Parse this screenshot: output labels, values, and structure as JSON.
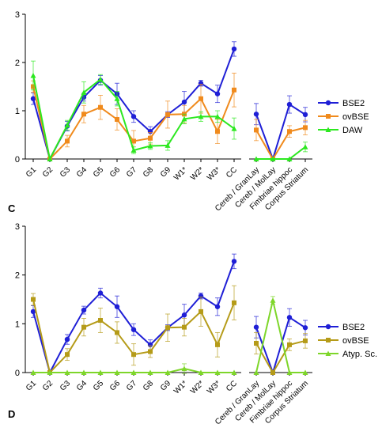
{
  "panels": [
    {
      "label": "C",
      "chart_data": {
        "type": "line",
        "categories": [
          "G1",
          "G2",
          "G3",
          "G4",
          "G5",
          "G6",
          "G7",
          "G8",
          "G9",
          "W1*",
          "W2*",
          "W3*",
          "CC",
          "Cereb / GranLay",
          "Cereb / MolLay",
          "Fimbriae hippoc",
          "Corpus Striatum"
        ],
        "segments": [
          [
            0,
            12
          ],
          [
            13,
            16
          ]
        ],
        "ylim": [
          0,
          3
        ],
        "yticks": [
          0,
          1,
          2,
          3
        ],
        "legend_position": "right",
        "series": [
          {
            "name": "BSE2",
            "color": "#1f1fd6",
            "marker": "circle",
            "values": [
              1.25,
              0.0,
              0.68,
              1.28,
              1.63,
              1.35,
              0.88,
              0.57,
              0.92,
              1.18,
              1.57,
              1.35,
              2.28,
              0.93,
              0.0,
              1.13,
              0.92
            ],
            "errors": [
              0.12,
              0.0,
              0.1,
              0.08,
              0.1,
              0.22,
              0.12,
              0.1,
              0.06,
              0.22,
              0.06,
              0.18,
              0.15,
              0.22,
              0.0,
              0.18,
              0.15
            ]
          },
          {
            "name": "ovBSE",
            "color": "#f08a1c",
            "marker": "square",
            "values": [
              1.5,
              0.0,
              0.37,
              0.93,
              1.07,
              0.82,
              0.37,
              0.43,
              0.92,
              0.93,
              1.25,
              0.57,
              1.43,
              0.6,
              0.0,
              0.57,
              0.65
            ],
            "errors": [
              0.12,
              0.0,
              0.12,
              0.18,
              0.25,
              0.22,
              0.22,
              0.12,
              0.28,
              0.18,
              0.3,
              0.25,
              0.35,
              0.22,
              0.0,
              0.12,
              0.15
            ]
          },
          {
            "name": "DAW",
            "color": "#2ce81f",
            "marker": "triangle",
            "values": [
              1.73,
              0.0,
              0.7,
              1.38,
              1.65,
              1.25,
              0.18,
              0.27,
              0.28,
              0.83,
              0.88,
              0.88,
              0.63,
              0.0,
              0.0,
              0.0,
              0.25
            ],
            "errors": [
              0.3,
              0.0,
              0.1,
              0.22,
              0.1,
              0.15,
              0.07,
              0.07,
              0.1,
              0.1,
              0.1,
              0.12,
              0.22,
              0.0,
              0.0,
              0.0,
              0.1
            ]
          }
        ]
      }
    },
    {
      "label": "D",
      "chart_data": {
        "type": "line",
        "categories": [
          "G1",
          "G2",
          "G3",
          "G4",
          "G5",
          "G6",
          "G7",
          "G8",
          "G9",
          "W1*",
          "W2*",
          "W3*",
          "CC",
          "Cereb / GranLay",
          "Cereb / MolLay",
          "Fimbriae hippoc",
          "Corpus Striatum"
        ],
        "segments": [
          [
            0,
            12
          ],
          [
            13,
            16
          ]
        ],
        "ylim": [
          0,
          3
        ],
        "yticks": [
          0,
          1,
          2,
          3
        ],
        "legend_position": "right",
        "series": [
          {
            "name": "BSE2",
            "color": "#1f1fd6",
            "marker": "circle",
            "values": [
              1.25,
              0.0,
              0.68,
              1.28,
              1.63,
              1.35,
              0.88,
              0.57,
              0.92,
              1.18,
              1.57,
              1.35,
              2.28,
              0.93,
              0.0,
              1.13,
              0.92
            ],
            "errors": [
              0.12,
              0.0,
              0.1,
              0.08,
              0.1,
              0.22,
              0.12,
              0.1,
              0.06,
              0.22,
              0.06,
              0.18,
              0.15,
              0.22,
              0.0,
              0.18,
              0.15
            ]
          },
          {
            "name": "ovBSE",
            "color": "#b59b18",
            "marker": "square",
            "values": [
              1.5,
              0.0,
              0.37,
              0.93,
              1.07,
              0.82,
              0.37,
              0.43,
              0.92,
              0.93,
              1.25,
              0.57,
              1.43,
              0.6,
              0.0,
              0.57,
              0.65
            ],
            "errors": [
              0.12,
              0.0,
              0.12,
              0.18,
              0.25,
              0.22,
              0.22,
              0.12,
              0.28,
              0.18,
              0.3,
              0.25,
              0.35,
              0.22,
              0.0,
              0.12,
              0.15
            ]
          },
          {
            "name": "Atyp. Sc.",
            "color": "#7ed62a",
            "marker": "triangle",
            "values": [
              0.0,
              0.0,
              0.0,
              0.0,
              0.0,
              0.0,
              0.0,
              0.0,
              0.0,
              0.08,
              0.0,
              0.0,
              0.0,
              0.0,
              1.48,
              0.0,
              0.0
            ],
            "errors": [
              0.0,
              0.0,
              0.0,
              0.0,
              0.0,
              0.0,
              0.0,
              0.0,
              0.0,
              0.1,
              0.0,
              0.0,
              0.0,
              0.0,
              0.08,
              0.0,
              0.0
            ]
          }
        ]
      }
    }
  ]
}
